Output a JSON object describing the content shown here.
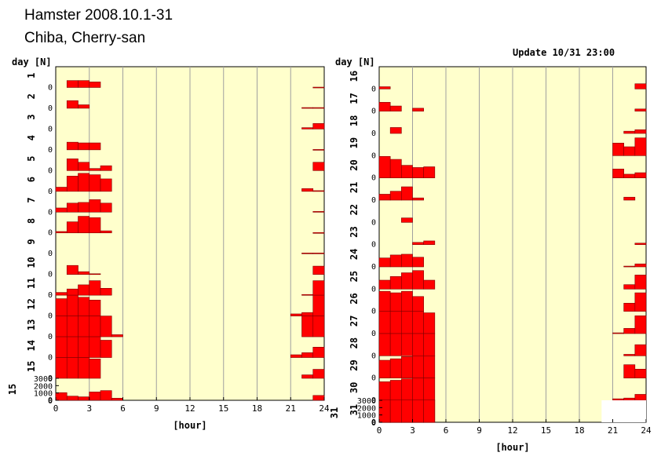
{
  "header": {
    "title": "Hamster 2008.10.1-31",
    "subtitle": "Chiba, Cherry-san",
    "update": "Update 10/31 23:00"
  },
  "colors": {
    "plot_bg": "#ffffcc",
    "bar": "#ff0000",
    "bar_edge": "#800000",
    "grid": "#a0a0a0",
    "gap": "#ffffff"
  },
  "chart_data": [
    {
      "type": "bar",
      "panel": "left",
      "days": [
        "1",
        "2",
        "3",
        "4",
        "5",
        "6",
        "7",
        "8",
        "9",
        "10",
        "11",
        "12",
        "13",
        "14",
        "15"
      ],
      "ylabel": "day [N]",
      "xlabel": "[hour]",
      "xlim": [
        0,
        24
      ],
      "xticks": [
        "0",
        "3",
        "6",
        "9",
        "12",
        "15",
        "18",
        "21",
        "24"
      ],
      "scale_ticks": [
        "3000",
        "2000",
        "1000",
        "0"
      ],
      "row_max": 3000,
      "hours": [
        0,
        1,
        2,
        3,
        4,
        5,
        6,
        7,
        8,
        9,
        10,
        11,
        12,
        13,
        14,
        15,
        16,
        17,
        18,
        19,
        20,
        21,
        22,
        23
      ],
      "values": [
        [
          0,
          1000,
          1000,
          800,
          0,
          0,
          0,
          0,
          0,
          0,
          0,
          0,
          0,
          0,
          0,
          0,
          0,
          0,
          0,
          0,
          0,
          0,
          0,
          50
        ],
        [
          0,
          1100,
          500,
          0,
          0,
          0,
          0,
          0,
          0,
          0,
          0,
          0,
          0,
          0,
          0,
          0,
          0,
          0,
          0,
          0,
          0,
          0,
          100,
          100
        ],
        [
          0,
          0,
          0,
          0,
          0,
          0,
          0,
          0,
          0,
          0,
          0,
          0,
          0,
          0,
          0,
          0,
          0,
          0,
          0,
          0,
          0,
          0,
          200,
          800
        ],
        [
          0,
          1100,
          1000,
          1000,
          0,
          0,
          0,
          0,
          0,
          0,
          0,
          0,
          0,
          0,
          0,
          0,
          0,
          0,
          0,
          0,
          0,
          0,
          0,
          50
        ],
        [
          0,
          1700,
          1200,
          300,
          700,
          0,
          0,
          0,
          0,
          0,
          0,
          0,
          0,
          0,
          0,
          0,
          0,
          0,
          0,
          0,
          0,
          0,
          0,
          1200
        ],
        [
          600,
          2200,
          2600,
          2400,
          1800,
          0,
          0,
          0,
          0,
          0,
          0,
          0,
          0,
          0,
          0,
          0,
          0,
          0,
          0,
          0,
          0,
          0,
          400,
          100
        ],
        [
          600,
          1300,
          1400,
          1800,
          1300,
          0,
          0,
          0,
          0,
          0,
          0,
          0,
          0,
          0,
          0,
          0,
          0,
          0,
          0,
          0,
          0,
          0,
          0,
          100
        ],
        [
          200,
          1600,
          2400,
          2200,
          300,
          0,
          0,
          0,
          0,
          0,
          0,
          0,
          0,
          0,
          0,
          0,
          0,
          0,
          0,
          0,
          0,
          0,
          0,
          50
        ],
        [
          0,
          0,
          0,
          0,
          0,
          0,
          0,
          0,
          0,
          0,
          0,
          0,
          0,
          0,
          0,
          0,
          0,
          0,
          0,
          0,
          0,
          0,
          100,
          100
        ],
        [
          0,
          1300,
          400,
          100,
          0,
          0,
          0,
          0,
          0,
          0,
          0,
          0,
          0,
          0,
          0,
          0,
          0,
          0,
          0,
          0,
          0,
          0,
          0,
          1200
        ],
        [
          400,
          900,
          1500,
          2100,
          1000,
          0,
          0,
          0,
          0,
          0,
          0,
          0,
          0,
          0,
          0,
          0,
          0,
          0,
          0,
          0,
          0,
          0,
          100,
          2100
        ],
        [
          2500,
          3000,
          2700,
          2300,
          0,
          0,
          0,
          0,
          0,
          0,
          0,
          0,
          0,
          0,
          0,
          0,
          0,
          0,
          0,
          0,
          0,
          300,
          500,
          3000
        ],
        [
          3000,
          3000,
          3000,
          3000,
          3000,
          300,
          0,
          0,
          0,
          0,
          0,
          0,
          0,
          0,
          0,
          0,
          0,
          0,
          0,
          0,
          0,
          0,
          3000,
          3000
        ],
        [
          3000,
          3000,
          3000,
          3000,
          2500,
          0,
          0,
          0,
          0,
          0,
          0,
          0,
          0,
          0,
          0,
          0,
          0,
          0,
          0,
          0,
          0,
          400,
          700,
          1500
        ],
        [
          3000,
          3000,
          3000,
          2800,
          0,
          0,
          0,
          0,
          0,
          0,
          0,
          0,
          0,
          0,
          0,
          0,
          0,
          0,
          0,
          0,
          0,
          0,
          500,
          1300
        ]
      ],
      "extra_row": [
        1100,
        600,
        500,
        1200,
        1400,
        300,
        0,
        0,
        0,
        0,
        0,
        0,
        0,
        0,
        0,
        0,
        0,
        0,
        0,
        0,
        0,
        0,
        0,
        700
      ]
    },
    {
      "type": "bar",
      "panel": "right",
      "days": [
        "16",
        "17",
        "18",
        "19",
        "20",
        "21",
        "22",
        "23",
        "24",
        "25",
        "26",
        "27",
        "28",
        "29",
        "30",
        "31"
      ],
      "ylabel": "day [N]",
      "xlabel": "[hour]",
      "xlim": [
        0,
        24
      ],
      "xticks": [
        "0",
        "3",
        "6",
        "9",
        "12",
        "15",
        "18",
        "21",
        "24"
      ],
      "scale_ticks": [
        "3000",
        "2000",
        "1000",
        "0"
      ],
      "row_max": 3000,
      "hours": [
        0,
        1,
        2,
        3,
        4,
        5,
        6,
        7,
        8,
        9,
        10,
        11,
        12,
        13,
        14,
        15,
        16,
        17,
        18,
        19,
        20,
        21,
        22,
        23
      ],
      "values": [
        [
          300,
          0,
          0,
          0,
          0,
          0,
          0,
          0,
          0,
          0,
          0,
          0,
          0,
          0,
          0,
          0,
          0,
          0,
          0,
          0,
          0,
          0,
          0,
          700
        ],
        [
          1200,
          700,
          0,
          400,
          0,
          0,
          0,
          0,
          0,
          0,
          0,
          0,
          0,
          0,
          0,
          0,
          0,
          0,
          0,
          0,
          0,
          0,
          0,
          300
        ],
        [
          0,
          800,
          0,
          0,
          0,
          0,
          0,
          0,
          0,
          0,
          0,
          0,
          0,
          0,
          0,
          0,
          0,
          0,
          0,
          0,
          0,
          0,
          300,
          500
        ],
        [
          0,
          0,
          0,
          0,
          0,
          0,
          0,
          0,
          0,
          0,
          0,
          0,
          0,
          0,
          0,
          0,
          0,
          0,
          0,
          0,
          0,
          1700,
          1200,
          2400
        ],
        [
          2900,
          2500,
          1700,
          1400,
          1500,
          0,
          0,
          0,
          0,
          0,
          0,
          0,
          0,
          0,
          0,
          0,
          0,
          0,
          0,
          0,
          0,
          1200,
          500,
          700
        ],
        [
          800,
          1200,
          1800,
          300,
          0,
          0,
          0,
          0,
          0,
          0,
          0,
          0,
          0,
          0,
          0,
          0,
          0,
          0,
          0,
          0,
          0,
          0,
          400,
          0
        ],
        [
          0,
          0,
          600,
          0,
          0,
          0,
          0,
          0,
          0,
          0,
          0,
          0,
          0,
          0,
          0,
          0,
          0,
          0,
          0,
          0,
          0,
          0,
          0,
          0
        ],
        [
          0,
          0,
          0,
          300,
          500,
          0,
          0,
          0,
          0,
          0,
          0,
          0,
          0,
          0,
          0,
          0,
          0,
          0,
          0,
          0,
          0,
          0,
          0,
          200
        ],
        [
          1200,
          1600,
          1700,
          1300,
          0,
          0,
          0,
          0,
          0,
          0,
          0,
          0,
          0,
          0,
          0,
          0,
          0,
          0,
          0,
          0,
          0,
          0,
          100,
          400
        ],
        [
          1200,
          1700,
          2200,
          2500,
          1200,
          0,
          0,
          0,
          0,
          0,
          0,
          0,
          0,
          0,
          0,
          0,
          0,
          0,
          0,
          0,
          0,
          0,
          600,
          1900
        ],
        [
          2700,
          2500,
          2700,
          2000,
          0,
          0,
          0,
          0,
          0,
          0,
          0,
          0,
          0,
          0,
          0,
          0,
          0,
          0,
          0,
          0,
          0,
          0,
          1100,
          2500
        ],
        [
          3000,
          3000,
          3000,
          3000,
          2800,
          0,
          0,
          0,
          0,
          0,
          0,
          0,
          0,
          0,
          0,
          0,
          0,
          0,
          0,
          0,
          0,
          100,
          700,
          2400
        ],
        [
          3000,
          3000,
          3000,
          3000,
          3000,
          0,
          0,
          0,
          0,
          0,
          0,
          0,
          0,
          0,
          0,
          0,
          0,
          0,
          0,
          0,
          0,
          0,
          200,
          1500
        ],
        [
          2400,
          2600,
          2900,
          3000,
          3000,
          0,
          0,
          0,
          0,
          0,
          0,
          0,
          0,
          0,
          0,
          0,
          0,
          0,
          0,
          0,
          0,
          0,
          1800,
          1200
        ],
        [
          2500,
          2700,
          2900,
          3000,
          3000,
          0,
          0,
          0,
          0,
          0,
          0,
          0,
          0,
          0,
          0,
          0,
          0,
          0,
          0,
          0,
          0,
          200,
          300,
          800
        ],
        [
          3000,
          3000,
          3000,
          3000,
          3000,
          0,
          0,
          0,
          0,
          0,
          0,
          0,
          0,
          0,
          0,
          0,
          0,
          0,
          0,
          0,
          0,
          0,
          0,
          0
        ]
      ]
    }
  ]
}
